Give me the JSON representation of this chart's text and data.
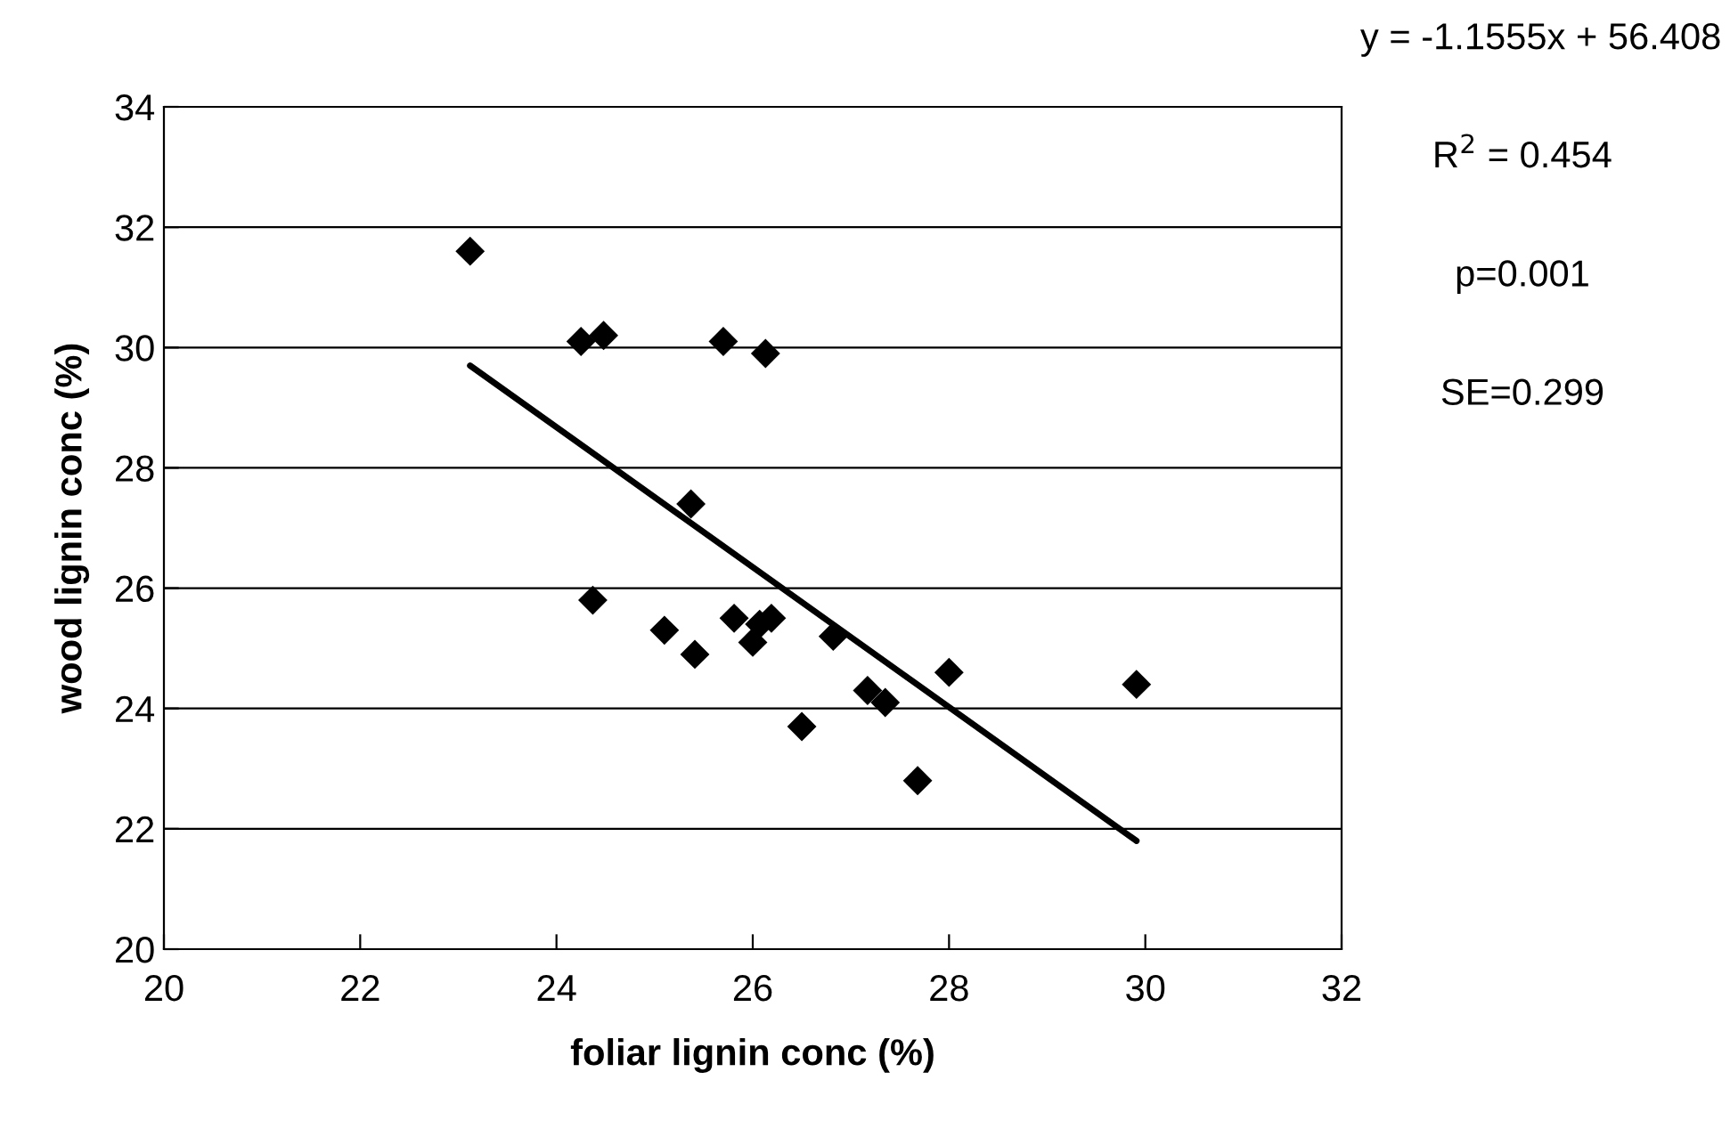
{
  "chart_data": {
    "type": "scatter",
    "xlabel": "foliar lignin conc (%)",
    "ylabel": "wood lignin conc (%)",
    "x": [
      23.12,
      24.25,
      24.48,
      25.7,
      26.13,
      25.37,
      24.37,
      25.1,
      25.41,
      25.81,
      26.0,
      26.07,
      26.19,
      26.5,
      26.82,
      27.17,
      27.35,
      28.0,
      27.68,
      29.91
    ],
    "series": [
      {
        "color": "#000000",
        "marker": "diamond",
        "values": [
          31.6,
          30.1,
          30.2,
          30.1,
          29.9,
          27.4,
          25.8,
          25.3,
          24.9,
          25.5,
          25.1,
          25.4,
          25.5,
          23.7,
          25.2,
          24.3,
          24.1,
          24.6,
          22.8,
          24.4
        ]
      },
      {
        "type": "line",
        "color": "#000000",
        "marker": "none",
        "x": [
          23.12,
          29.91
        ],
        "values": [
          29.7,
          21.8
        ]
      }
    ],
    "xlim": [
      20,
      32
    ],
    "xticks": [
      20,
      22,
      24,
      26,
      28,
      30,
      32
    ],
    "ylim": [
      20,
      34
    ],
    "yticks": [
      20,
      22,
      24,
      26,
      28,
      30,
      32,
      34
    ],
    "grid": "y",
    "legend": false,
    "annotations": [
      "y = -1.1555x + 56.408",
      "R$^{2}$ = 0.454",
      "p=0.001",
      "SE=0.299"
    ]
  }
}
